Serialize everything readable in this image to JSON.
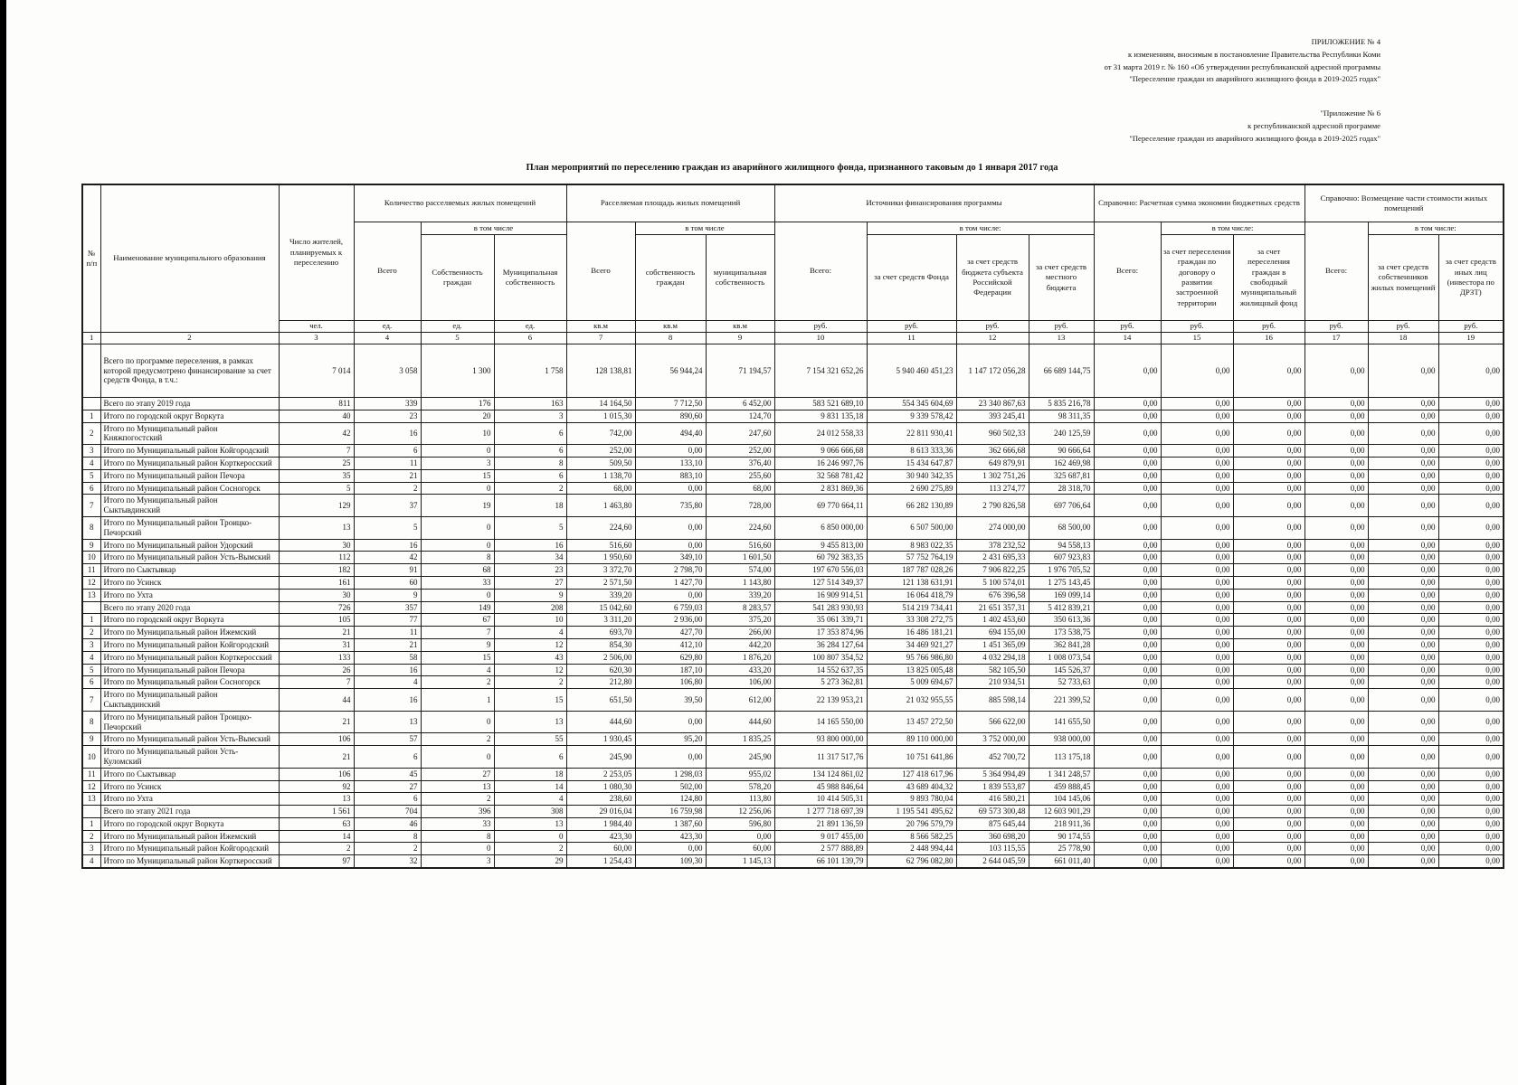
{
  "page": {
    "corner_note_lines": [
      "ПРИЛОЖЕНИЕ № 4",
      "к изменениям, вносимым в постановление Правительства Республики Коми",
      "от 31 марта 2019 г. № 160 «Об утверждении республиканской адресной программы",
      "\"Переселение граждан из аварийного жилищного фонда в 2019-2025 годах\""
    ],
    "corner_note2_lines": [
      "\"Приложение № 6",
      "к республиканской адресной программе",
      "\"Переселение граждан из аварийного жилищного фонда в 2019-2025 годах\""
    ],
    "title": "План мероприятий по переселению граждан из аварийного жилищного фонда, признанного таковым до 1 января 2017 года"
  },
  "table": {
    "cols": {
      "npp": "№ п/п",
      "name": "Наименование муниципального образования",
      "residents": "Число жителей, планируемых к переселению",
      "g1": {
        "title": "Количество расселяемых жилых помещений",
        "vtch": "в том числе",
        "total": "Всего",
        "own": "Собственность граждан",
        "mun": "Муниципальная собственность"
      },
      "g2": {
        "title": "Расселяемая площадь жилых помещений",
        "vtch": "в том числе",
        "total": "Всего",
        "own": "собственность граждан",
        "mun": "муниципальная собственность"
      },
      "g3": {
        "title": "Источники финансирования программы",
        "vtch": "в том числе:",
        "total": "Всего:",
        "fund": "за счет средств Фонда",
        "subject": "за счет средств бюджета субъекта Российской Федерации",
        "local": "за счет средств местного бюджета"
      },
      "g4": {
        "title": "Справочно: Расчетная сумма экономии бюджетных средств",
        "vtch": "в том числе:",
        "total": "Всего:",
        "dev": "за счет переселения граждан по договору о развитии застроенной территории",
        "free": "за счет переселения граждан в свободный муниципальный жилищный фонд"
      },
      "g5": {
        "title": "Справочно: Возмещение части стоимости жилых помещений",
        "vtch": "в том числе:",
        "total": "Всего:",
        "owners": "за счет средств собственников жилых помещений",
        "others": "за счет средств иных лиц (инвестора по ДРЗТ)"
      }
    },
    "units": [
      "чел.",
      "ед.",
      "ед.",
      "ед.",
      "кв.м",
      "кв.м",
      "кв.м",
      "руб.",
      "руб.",
      "руб.",
      "руб.",
      "руб.",
      "руб.",
      "руб.",
      "руб.",
      "руб.",
      "руб."
    ],
    "col_numbers": [
      "1",
      "2",
      "3",
      "4",
      "5",
      "6",
      "7",
      "8",
      "9",
      "10",
      "11",
      "12",
      "13",
      "14",
      "15",
      "16",
      "17",
      "18",
      "19"
    ],
    "rows": [
      {
        "num": "",
        "name": "Всего по программе переселения, в рамках которой предусмотрено финансирование за счет средств Фонда, в т.ч.:",
        "values": [
          "7 014",
          "3 058",
          "1 300",
          "1 758",
          "128 138,81",
          "56 944,24",
          "71 194,57",
          "7 154 321 652,26",
          "5 940 460 451,23",
          "1 147 172 056,28",
          "66 689 144,75",
          "0,00",
          "0,00",
          "0,00",
          "0,00",
          "0,00",
          "0,00"
        ]
      },
      {
        "num": "",
        "name": "Всего по этапу 2019 года",
        "values": [
          "811",
          "339",
          "176",
          "163",
          "14 164,50",
          "7 712,50",
          "6 452,00",
          "583 521 689,10",
          "554 345 604,69",
          "23 340 867,63",
          "5 835 216,78",
          "0,00",
          "0,00",
          "0,00",
          "0,00",
          "0,00",
          "0,00"
        ]
      },
      {
        "num": "1",
        "name": "Итого по городской округ Воркута",
        "values": [
          "40",
          "23",
          "20",
          "3",
          "1 015,30",
          "890,60",
          "124,70",
          "9 831 135,18",
          "9 339 578,42",
          "393 245,41",
          "98 311,35",
          "0,00",
          "0,00",
          "0,00",
          "0,00",
          "0,00",
          "0,00"
        ]
      },
      {
        "num": "2",
        "name": "Итого по Муниципальный район Княжпогостский",
        "values": [
          "42",
          "16",
          "10",
          "6",
          "742,00",
          "494,40",
          "247,60",
          "24 012 558,33",
          "22 811 930,41",
          "960 502,33",
          "240 125,59",
          "0,00",
          "0,00",
          "0,00",
          "0,00",
          "0,00",
          "0,00"
        ]
      },
      {
        "num": "3",
        "name": "Итого по Муниципальный район Койгородский",
        "values": [
          "7",
          "6",
          "0",
          "6",
          "252,00",
          "0,00",
          "252,00",
          "9 066 666,68",
          "8 613 333,36",
          "362 666,68",
          "90 666,64",
          "0,00",
          "0,00",
          "0,00",
          "0,00",
          "0,00",
          "0,00"
        ]
      },
      {
        "num": "4",
        "name": "Итого по Муниципальный район Корткеросский",
        "values": [
          "25",
          "11",
          "3",
          "8",
          "509,50",
          "133,10",
          "376,40",
          "16 246 997,76",
          "15 434 647,87",
          "649 879,91",
          "162 469,98",
          "0,00",
          "0,00",
          "0,00",
          "0,00",
          "0,00",
          "0,00"
        ]
      },
      {
        "num": "5",
        "name": "Итого по Муниципальный район Печора",
        "values": [
          "35",
          "21",
          "15",
          "6",
          "1 138,70",
          "883,10",
          "255,60",
          "32 568 781,42",
          "30 940 342,35",
          "1 302 751,26",
          "325 687,81",
          "0,00",
          "0,00",
          "0,00",
          "0,00",
          "0,00",
          "0,00"
        ]
      },
      {
        "num": "6",
        "name": "Итого по Муниципальный район Сосногорск",
        "values": [
          "5",
          "2",
          "0",
          "2",
          "68,00",
          "0,00",
          "68,00",
          "2 831 869,36",
          "2 690 275,89",
          "113 274,77",
          "28 318,70",
          "0,00",
          "0,00",
          "0,00",
          "0,00",
          "0,00",
          "0,00"
        ]
      },
      {
        "num": "7",
        "name": "Итого по Муниципальный район Сыктывдинский",
        "values": [
          "129",
          "37",
          "19",
          "18",
          "1 463,80",
          "735,80",
          "728,00",
          "69 770 664,11",
          "66 282 130,89",
          "2 790 826,58",
          "697 706,64",
          "0,00",
          "0,00",
          "0,00",
          "0,00",
          "0,00",
          "0,00"
        ]
      },
      {
        "num": "8",
        "name": "Итого по Муниципальный район Троицко-Печорский",
        "values": [
          "13",
          "5",
          "0",
          "5",
          "224,60",
          "0,00",
          "224,60",
          "6 850 000,00",
          "6 507 500,00",
          "274 000,00",
          "68 500,00",
          "0,00",
          "0,00",
          "0,00",
          "0,00",
          "0,00",
          "0,00"
        ]
      },
      {
        "num": "9",
        "name": "Итого по Муниципальный район Удорский",
        "values": [
          "30",
          "16",
          "0",
          "16",
          "516,60",
          "0,00",
          "516,60",
          "9 455 813,00",
          "8 983 022,35",
          "378 232,52",
          "94 558,13",
          "0,00",
          "0,00",
          "0,00",
          "0,00",
          "0,00",
          "0,00"
        ]
      },
      {
        "num": "10",
        "name": "Итого по Муниципальный район Усть-Вымский",
        "values": [
          "112",
          "42",
          "8",
          "34",
          "1 950,60",
          "349,10",
          "1 601,50",
          "60 792 383,35",
          "57 752 764,19",
          "2 431 695,33",
          "607 923,83",
          "0,00",
          "0,00",
          "0,00",
          "0,00",
          "0,00",
          "0,00"
        ]
      },
      {
        "num": "11",
        "name": "Итого по Сыктывкар",
        "values": [
          "182",
          "91",
          "68",
          "23",
          "3 372,70",
          "2 798,70",
          "574,00",
          "197 670 556,03",
          "187 787 028,26",
          "7 906 822,25",
          "1 976 705,52",
          "0,00",
          "0,00",
          "0,00",
          "0,00",
          "0,00",
          "0,00"
        ]
      },
      {
        "num": "12",
        "name": "Итого по Усинск",
        "values": [
          "161",
          "60",
          "33",
          "27",
          "2 571,50",
          "1 427,70",
          "1 143,80",
          "127 514 349,37",
          "121 138 631,91",
          "5 100 574,01",
          "1 275 143,45",
          "0,00",
          "0,00",
          "0,00",
          "0,00",
          "0,00",
          "0,00"
        ]
      },
      {
        "num": "13",
        "name": "Итого по Ухта",
        "values": [
          "30",
          "9",
          "0",
          "9",
          "339,20",
          "0,00",
          "339,20",
          "16 909 914,51",
          "16 064 418,79",
          "676 396,58",
          "169 099,14",
          "0,00",
          "0,00",
          "0,00",
          "0,00",
          "0,00",
          "0,00"
        ]
      },
      {
        "num": "",
        "name": "Всего по этапу 2020 года",
        "values": [
          "726",
          "357",
          "149",
          "208",
          "15 042,60",
          "6 759,03",
          "8 283,57",
          "541 283 930,93",
          "514 219 734,41",
          "21 651 357,31",
          "5 412 839,21",
          "0,00",
          "0,00",
          "0,00",
          "0,00",
          "0,00",
          "0,00"
        ]
      },
      {
        "num": "1",
        "name": "Итого по городской округ Воркута",
        "values": [
          "105",
          "77",
          "67",
          "10",
          "3 311,20",
          "2 936,00",
          "375,20",
          "35 061 339,71",
          "33 308 272,75",
          "1 402 453,60",
          "350 613,36",
          "0,00",
          "0,00",
          "0,00",
          "0,00",
          "0,00",
          "0,00"
        ]
      },
      {
        "num": "2",
        "name": "Итого по Муниципальный район Ижемский",
        "values": [
          "21",
          "11",
          "7",
          "4",
          "693,70",
          "427,70",
          "266,00",
          "17 353 874,96",
          "16 486 181,21",
          "694 155,00",
          "173 538,75",
          "0,00",
          "0,00",
          "0,00",
          "0,00",
          "0,00",
          "0,00"
        ]
      },
      {
        "num": "3",
        "name": "Итого по Муниципальный район Койгородский",
        "values": [
          "31",
          "21",
          "9",
          "12",
          "854,30",
          "412,10",
          "442,20",
          "36 284 127,64",
          "34 469 921,27",
          "1 451 365,09",
          "362 841,28",
          "0,00",
          "0,00",
          "0,00",
          "0,00",
          "0,00",
          "0,00"
        ]
      },
      {
        "num": "4",
        "name": "Итого по Муниципальный район Корткеросский",
        "values": [
          "133",
          "58",
          "15",
          "43",
          "2 506,00",
          "629,80",
          "1 876,20",
          "100 807 354,52",
          "95 766 986,80",
          "4 032 294,18",
          "1 008 073,54",
          "0,00",
          "0,00",
          "0,00",
          "0,00",
          "0,00",
          "0,00"
        ]
      },
      {
        "num": "5",
        "name": "Итого по Муниципальный район Печора",
        "values": [
          "26",
          "16",
          "4",
          "12",
          "620,30",
          "187,10",
          "433,20",
          "14 552 637,35",
          "13 825 005,48",
          "582 105,50",
          "145 526,37",
          "0,00",
          "0,00",
          "0,00",
          "0,00",
          "0,00",
          "0,00"
        ]
      },
      {
        "num": "6",
        "name": "Итого по Муниципальный район Сосногорск",
        "values": [
          "7",
          "4",
          "2",
          "2",
          "212,80",
          "106,80",
          "106,00",
          "5 273 362,81",
          "5 009 694,67",
          "210 934,51",
          "52 733,63",
          "0,00",
          "0,00",
          "0,00",
          "0,00",
          "0,00",
          "0,00"
        ]
      },
      {
        "num": "7",
        "name": "Итого по Муниципальный район Сыктывдинский",
        "values": [
          "44",
          "16",
          "1",
          "15",
          "651,50",
          "39,50",
          "612,00",
          "22 139 953,21",
          "21 032 955,55",
          "885 598,14",
          "221 399,52",
          "0,00",
          "0,00",
          "0,00",
          "0,00",
          "0,00",
          "0,00"
        ]
      },
      {
        "num": "8",
        "name": "Итого по Муниципальный район Троицко-Печорский",
        "values": [
          "21",
          "13",
          "0",
          "13",
          "444,60",
          "0,00",
          "444,60",
          "14 165 550,00",
          "13 457 272,50",
          "566 622,00",
          "141 655,50",
          "0,00",
          "0,00",
          "0,00",
          "0,00",
          "0,00",
          "0,00"
        ]
      },
      {
        "num": "9",
        "name": "Итого по Муниципальный район Усть-Вымский",
        "values": [
          "106",
          "57",
          "2",
          "55",
          "1 930,45",
          "95,20",
          "1 835,25",
          "93 800 000,00",
          "89 110 000,00",
          "3 752 000,00",
          "938 000,00",
          "0,00",
          "0,00",
          "0,00",
          "0,00",
          "0,00",
          "0,00"
        ]
      },
      {
        "num": "10",
        "name": "Итого по Муниципальный район Усть-Куломский",
        "values": [
          "21",
          "6",
          "0",
          "6",
          "245,90",
          "0,00",
          "245,90",
          "11 317 517,76",
          "10 751 641,86",
          "452 700,72",
          "113 175,18",
          "0,00",
          "0,00",
          "0,00",
          "0,00",
          "0,00",
          "0,00"
        ]
      },
      {
        "num": "11",
        "name": "Итого по Сыктывкар",
        "values": [
          "106",
          "45",
          "27",
          "18",
          "2 253,05",
          "1 298,03",
          "955,02",
          "134 124 861,02",
          "127 418 617,96",
          "5 364 994,49",
          "1 341 248,57",
          "0,00",
          "0,00",
          "0,00",
          "0,00",
          "0,00",
          "0,00"
        ]
      },
      {
        "num": "12",
        "name": "Итого по Усинск",
        "values": [
          "92",
          "27",
          "13",
          "14",
          "1 080,30",
          "502,00",
          "578,20",
          "45 988 846,64",
          "43 689 404,32",
          "1 839 553,87",
          "459 888,45",
          "0,00",
          "0,00",
          "0,00",
          "0,00",
          "0,00",
          "0,00"
        ]
      },
      {
        "num": "13",
        "name": "Итого по Ухта",
        "values": [
          "13",
          "6",
          "2",
          "4",
          "238,60",
          "124,80",
          "113,80",
          "10 414 505,31",
          "9 893 780,04",
          "416 580,21",
          "104 145,06",
          "0,00",
          "0,00",
          "0,00",
          "0,00",
          "0,00",
          "0,00"
        ]
      },
      {
        "num": "",
        "name": "Всего по этапу 2021 года",
        "values": [
          "1 561",
          "704",
          "396",
          "308",
          "29 016,04",
          "16 759,98",
          "12 256,06",
          "1 277 718 697,39",
          "1 195 541 495,62",
          "69 573 300,48",
          "12 603 901,29",
          "0,00",
          "0,00",
          "0,00",
          "0,00",
          "0,00",
          "0,00"
        ]
      },
      {
        "num": "1",
        "name": "Итого по городской округ Воркута",
        "values": [
          "63",
          "46",
          "33",
          "13",
          "1 984,40",
          "1 387,60",
          "596,80",
          "21 891 136,59",
          "20 796 579,79",
          "875 645,44",
          "218 911,36",
          "0,00",
          "0,00",
          "0,00",
          "0,00",
          "0,00",
          "0,00"
        ]
      },
      {
        "num": "2",
        "name": "Итого по Муниципальный район Ижемский",
        "values": [
          "14",
          "8",
          "8",
          "0",
          "423,30",
          "423,30",
          "0,00",
          "9 017 455,00",
          "8 566 582,25",
          "360 698,20",
          "90 174,55",
          "0,00",
          "0,00",
          "0,00",
          "0,00",
          "0,00",
          "0,00"
        ]
      },
      {
        "num": "3",
        "name": "Итого по Муниципальный район Койгородский",
        "values": [
          "2",
          "2",
          "0",
          "2",
          "60,00",
          "0,00",
          "60,00",
          "2 577 888,89",
          "2 448 994,44",
          "103 115,55",
          "25 778,90",
          "0,00",
          "0,00",
          "0,00",
          "0,00",
          "0,00",
          "0,00"
        ]
      },
      {
        "num": "4",
        "name": "Итого по Муниципальный район Корткеросский",
        "values": [
          "97",
          "32",
          "3",
          "29",
          "1 254,43",
          "109,30",
          "1 145,13",
          "66 101 139,79",
          "62 796 082,80",
          "2 644 045,59",
          "661 011,40",
          "0,00",
          "0,00",
          "0,00",
          "0,00",
          "0,00",
          "0,00"
        ]
      }
    ]
  }
}
